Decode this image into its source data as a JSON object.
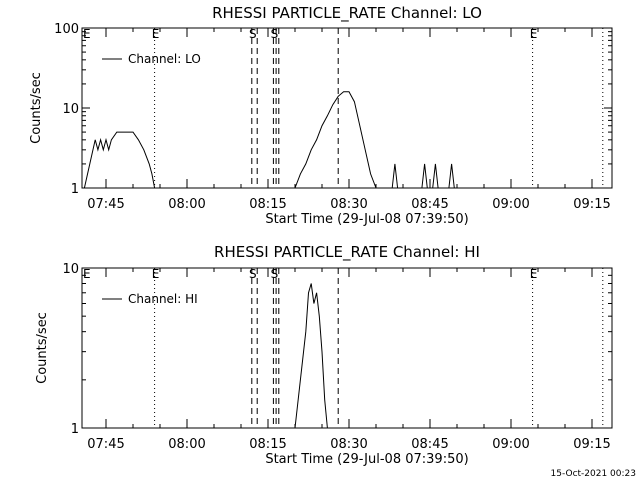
{
  "chart_data": [
    {
      "type": "line",
      "title": "RHESSI PARTICLE_RATE Channel: LO",
      "xlabel": "Start Time (29-Jul-08 07:39:50)",
      "ylabel": "Counts/sec",
      "y_scale": "log",
      "ylim": [
        1,
        100
      ],
      "y_ticks": [
        "1",
        "10",
        "100"
      ],
      "x_ticks": [
        "07:45",
        "08:00",
        "08:15",
        "08:30",
        "08:45",
        "09:00",
        "09:15"
      ],
      "legend": "Channel: LO",
      "legend_placement": "top-left",
      "series": [
        {
          "name": "Channel: LO",
          "x": [
            "07:41",
            "07:42",
            "07:43",
            "07:43:30",
            "07:44",
            "07:44:30",
            "07:45",
            "07:45:30",
            "07:46",
            "07:47",
            "07:48",
            "07:49",
            "07:50",
            "07:51",
            "07:52",
            "07:53",
            "07:53:30",
            "07:54",
            "07:54:30",
            "08:20",
            "08:21",
            "08:22",
            "08:23",
            "08:24",
            "08:25",
            "08:26",
            "08:27",
            "08:28",
            "08:29",
            "08:30",
            "08:31",
            "08:32",
            "08:33",
            "08:34",
            "08:35",
            "08:36",
            "08:37",
            "08:38",
            "08:38:30",
            "08:39",
            "08:39:30",
            "08:40",
            "08:43:30",
            "08:44",
            "08:44:30",
            "08:45:30",
            "08:46",
            "08:46:30",
            "08:48:30",
            "08:49",
            "08:49:30"
          ],
          "y": [
            1,
            2,
            4,
            3,
            4,
            3,
            4,
            3,
            4,
            5,
            5,
            5,
            5,
            4,
            3,
            2,
            1.5,
            1,
            null,
            1,
            1.5,
            2,
            3,
            4,
            6,
            8,
            11,
            14,
            16,
            16,
            12,
            6,
            3,
            1.5,
            1,
            null,
            null,
            1,
            2,
            1,
            null,
            null,
            1,
            2,
            1,
            1,
            2,
            1,
            1,
            2,
            1
          ]
        }
      ],
      "markers": [
        {
          "label": "E",
          "style": "dotted",
          "time": "07:54"
        },
        {
          "label": "S",
          "style": "dashed",
          "time": "08:12"
        },
        {
          "label": "",
          "style": "dashed",
          "time": "08:13"
        },
        {
          "label": "S",
          "style": "dashed",
          "time": "08:16"
        },
        {
          "label": "",
          "style": "dashed",
          "time": "08:16:30"
        },
        {
          "label": "",
          "style": "dashed",
          "time": "08:17"
        },
        {
          "label": "",
          "style": "dashed",
          "time": "08:28"
        },
        {
          "label": "E",
          "style": "dotted",
          "time": "09:04"
        },
        {
          "label": "",
          "style": "dotted",
          "time": "09:17"
        }
      ],
      "corner_label": "E"
    },
    {
      "type": "line",
      "title": "RHESSI PARTICLE_RATE Channel: HI",
      "xlabel": "Start Time (29-Jul-08 07:39:50)",
      "ylabel": "Counts/sec",
      "y_scale": "log",
      "ylim": [
        1,
        10
      ],
      "y_ticks": [
        "1",
        "10"
      ],
      "x_ticks": [
        "07:45",
        "08:00",
        "08:15",
        "08:30",
        "08:45",
        "09:00",
        "09:15"
      ],
      "legend": "Channel: HI",
      "legend_placement": "top-left",
      "series": [
        {
          "name": "Channel: HI",
          "x": [
            "08:20",
            "08:21",
            "08:22",
            "08:22:30",
            "08:23",
            "08:23:30",
            "08:24",
            "08:24:30",
            "08:25",
            "08:25:30",
            "08:26"
          ],
          "y": [
            1,
            2,
            4,
            7,
            8,
            6,
            7,
            5,
            3,
            1.5,
            1
          ]
        }
      ],
      "markers": [
        {
          "label": "E",
          "style": "dotted",
          "time": "07:54"
        },
        {
          "label": "S",
          "style": "dashed",
          "time": "08:12"
        },
        {
          "label": "",
          "style": "dashed",
          "time": "08:13"
        },
        {
          "label": "S",
          "style": "dashed",
          "time": "08:16"
        },
        {
          "label": "",
          "style": "dashed",
          "time": "08:16:30"
        },
        {
          "label": "",
          "style": "dashed",
          "time": "08:17"
        },
        {
          "label": "",
          "style": "dashed",
          "time": "08:28"
        },
        {
          "label": "E",
          "style": "dotted",
          "time": "09:04"
        },
        {
          "label": "",
          "style": "dotted",
          "time": "09:17"
        }
      ],
      "corner_label": "E"
    }
  ],
  "timestamp": "15-Oct-2021 00:23",
  "colors": {
    "background": "#ffffff",
    "foreground": "#000000"
  }
}
